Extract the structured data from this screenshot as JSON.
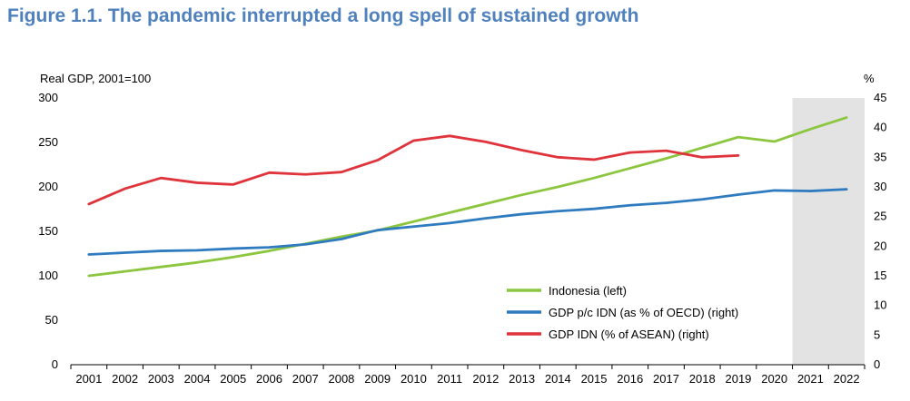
{
  "title": "Figure 1.1. The pandemic interrupted a long spell of sustained growth",
  "chart_data": {
    "type": "line",
    "title": "Figure 1.1. The pandemic interrupted a long spell of sustained growth",
    "left_axis_label": "Real GDP, 2001=100",
    "right_axis_label": "%",
    "x": [
      "2001",
      "2002",
      "2003",
      "2004",
      "2005",
      "2006",
      "2007",
      "2008",
      "2009",
      "2010",
      "2011",
      "2012",
      "2013",
      "2014",
      "2015",
      "2016",
      "2017",
      "2018",
      "2019",
      "2020",
      "2021",
      "2022"
    ],
    "ylim_left": [
      0,
      300
    ],
    "yticks_left": [
      "0",
      "50",
      "100",
      "150",
      "200",
      "250",
      "300"
    ],
    "ylim_right": [
      0,
      45
    ],
    "yticks_right": [
      "0",
      "5",
      "10",
      "15",
      "20",
      "25",
      "30",
      "35",
      "40",
      "45"
    ],
    "shaded_period": [
      "2021",
      "2022"
    ],
    "series": [
      {
        "name": "Indonesia (left)",
        "axis": "left",
        "color": "#8cc63f",
        "values": [
          100,
          105,
          110,
          115,
          121,
          128,
          136,
          144,
          151,
          161,
          171,
          181,
          191,
          200,
          210,
          221,
          232,
          244,
          256,
          251,
          265,
          278
        ]
      },
      {
        "name": "GDP p/c IDN (as % of OECD) (right)",
        "axis": "right",
        "color": "#2f7bbf",
        "values": [
          18.6,
          18.9,
          19.2,
          19.3,
          19.6,
          19.8,
          20.3,
          21.2,
          22.7,
          23.3,
          23.9,
          24.7,
          25.4,
          25.9,
          26.3,
          26.9,
          27.3,
          27.9,
          28.7,
          29.4,
          29.3,
          29.6
        ]
      },
      {
        "name": "GDP IDN (% of ASEAN) (right)",
        "axis": "right",
        "color": "#e0343c",
        "values": [
          27.1,
          29.7,
          31.5,
          30.7,
          30.4,
          32.4,
          32.1,
          32.5,
          34.5,
          37.8,
          38.6,
          37.6,
          36.2,
          35.0,
          34.6,
          35.8,
          36.1,
          35.0,
          35.3,
          null,
          null,
          null
        ]
      }
    ],
    "legend_position": "bottom-center"
  }
}
